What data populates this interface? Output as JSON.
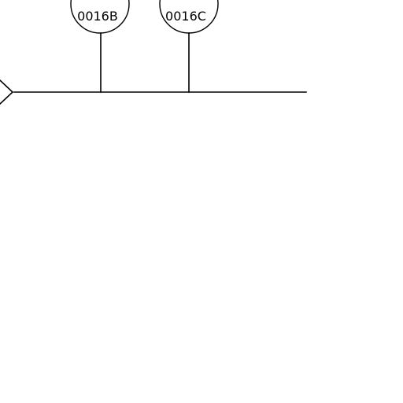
{
  "drawing": {
    "background": "#ffffff",
    "line_color": "#000000",
    "bubbles": [
      {
        "tag": "0016B"
      },
      {
        "tag": "0016C"
      }
    ]
  }
}
